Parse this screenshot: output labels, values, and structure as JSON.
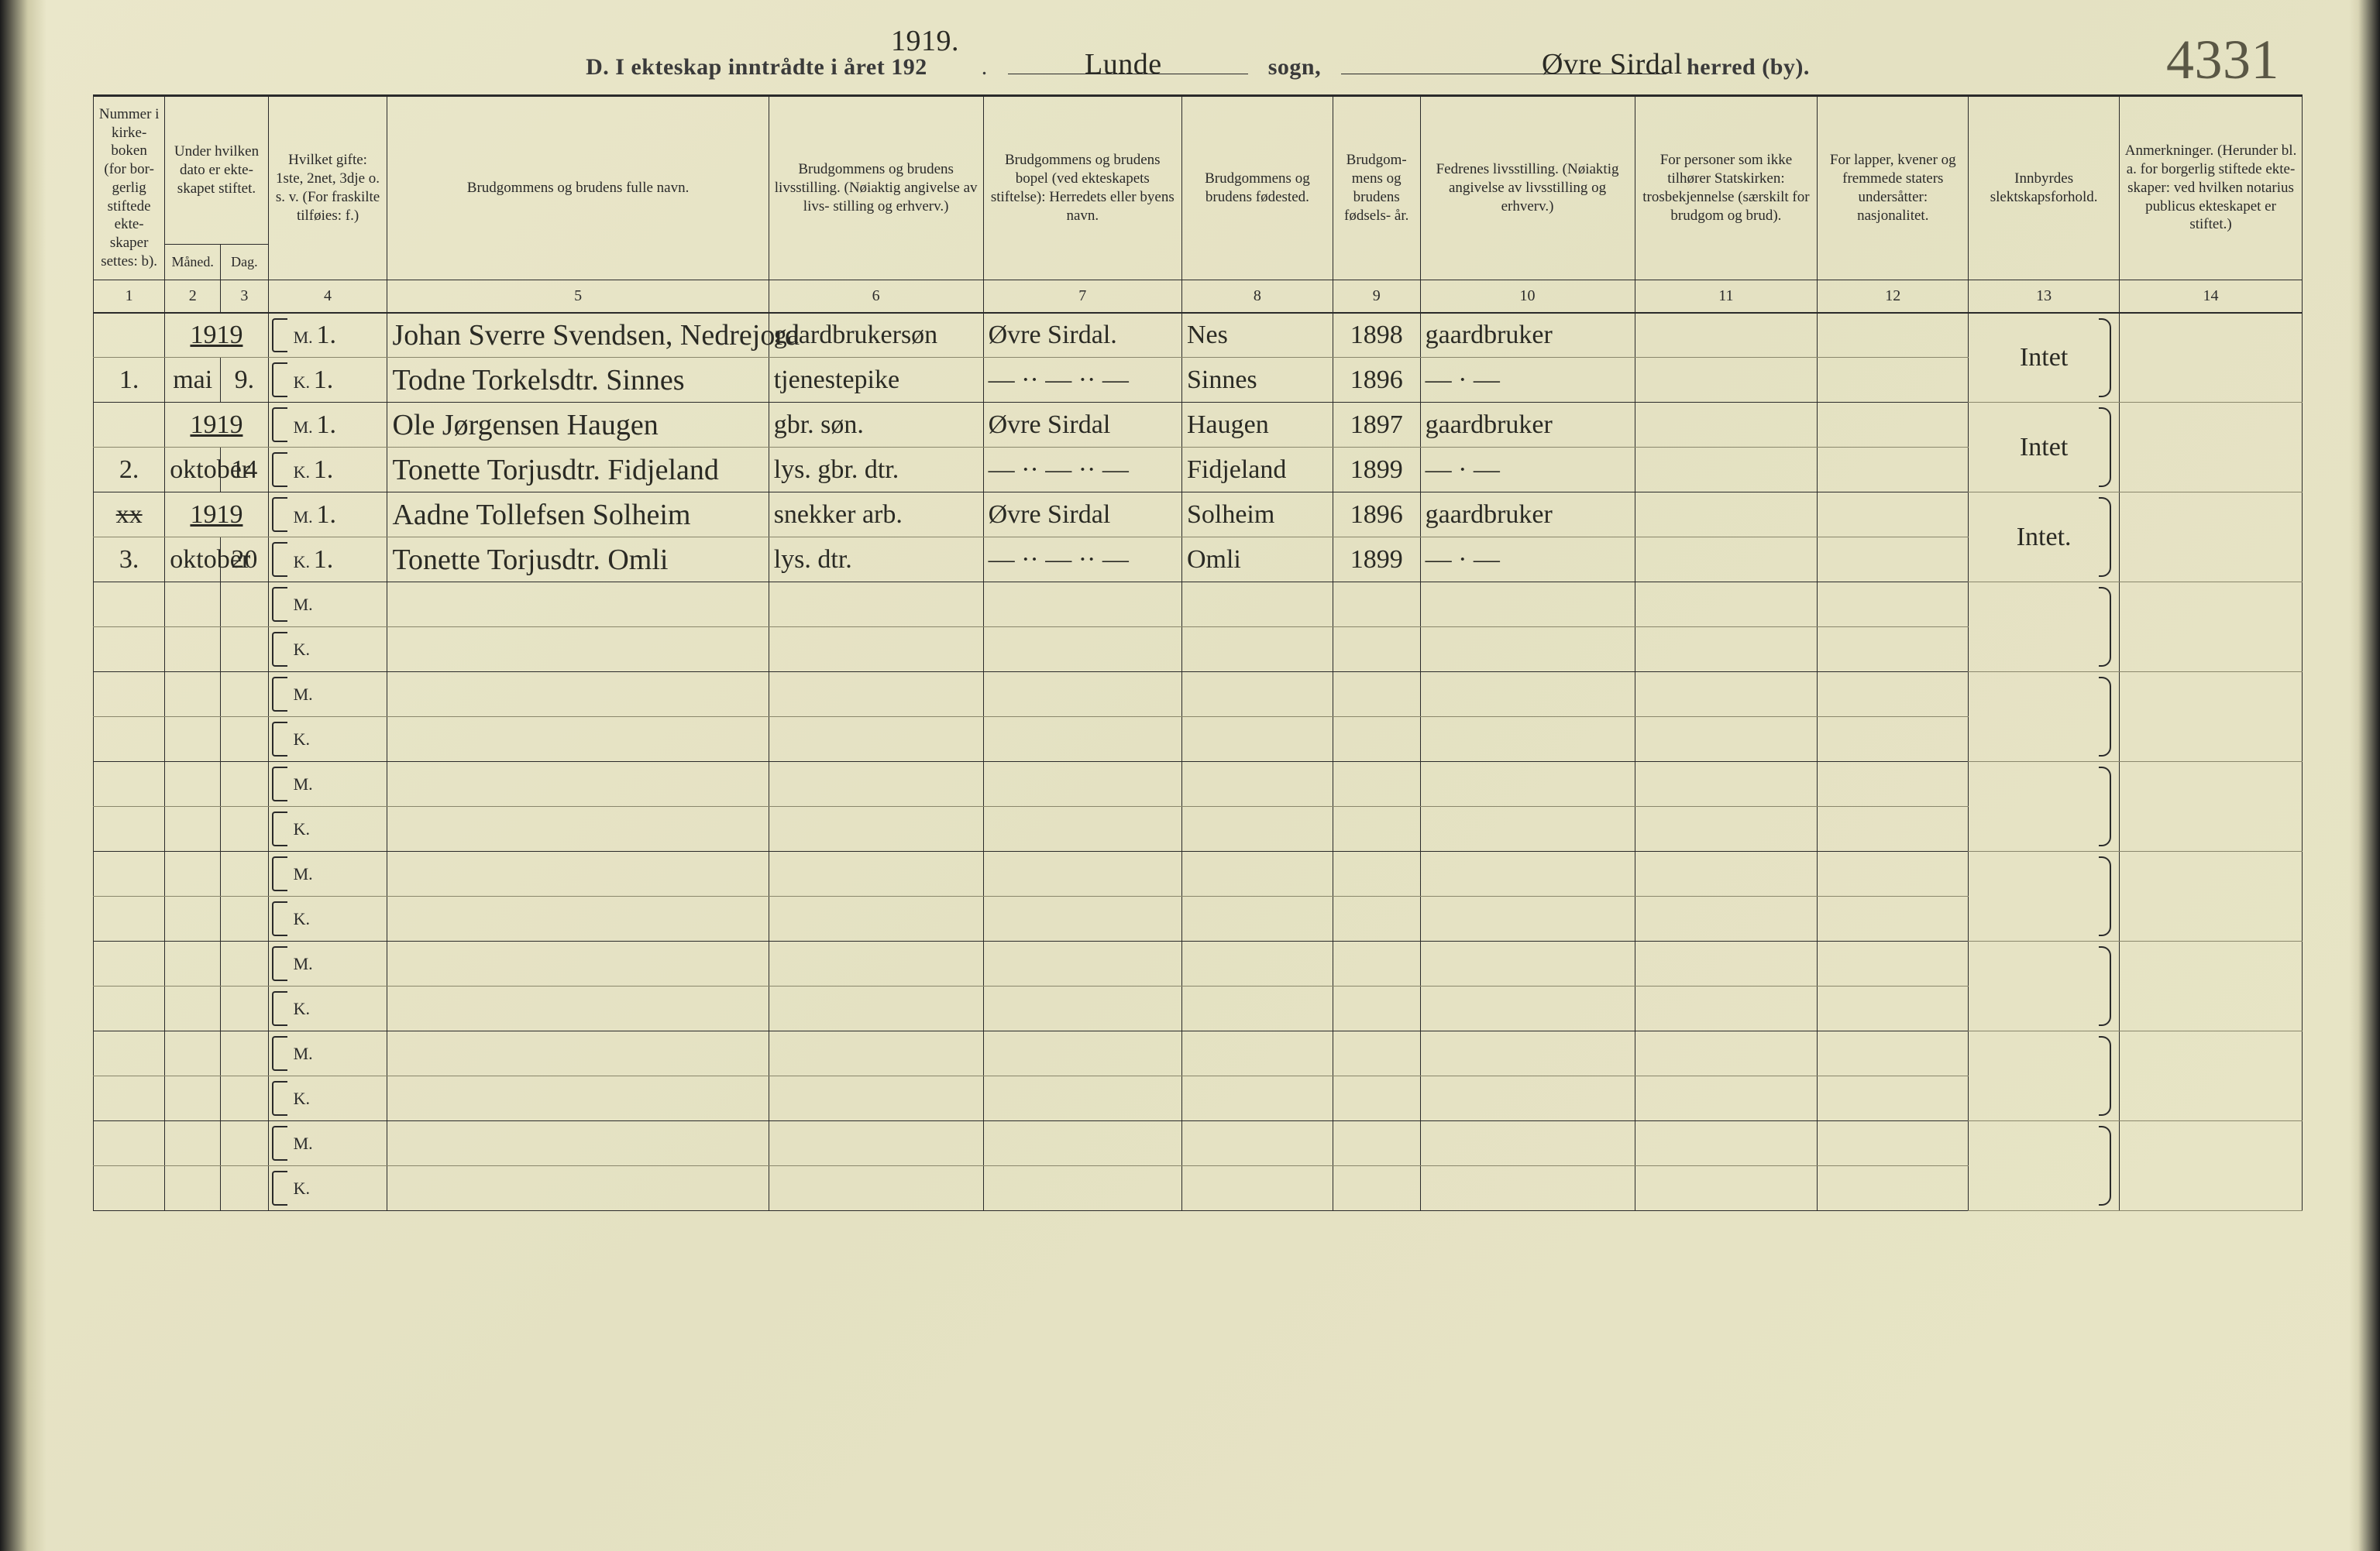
{
  "header": {
    "section_letter": "D.",
    "title_prefix": "I ekteskap inntrådte i året 192",
    "year_handwritten_above": "1919.",
    "sogn_label": "sogn,",
    "sogn_value": "Lunde",
    "herred_label": "herred (by).",
    "herred_value": "Øvre Sirdal",
    "page_number_hand": "4331"
  },
  "columns": {
    "1": "Nummer i kirke- boken (for bor- gerlig stiftede ekte- skaper settes: b).",
    "2_group": "Under hvilken dato er ekte- skapet stiftet.",
    "2": "Måned.",
    "3": "Dag.",
    "4": "Hvilket gifte: 1ste, 2net, 3dje o. s. v. (For fraskilte tilføies: f.)",
    "5": "Brudgommens og brudens fulle navn.",
    "6": "Brudgommens og brudens livsstilling. (Nøiaktig angivelse av livs- stilling og erhverv.)",
    "7": "Brudgommens og brudens bopel (ved ekteskapets stiftelse): Herredets eller byens navn.",
    "8": "Brudgommens og brudens fødested.",
    "9": "Brudgom- mens og brudens fødsels- år.",
    "10": "Fedrenes livsstilling. (Nøiaktig angivelse av livsstilling og erhverv.)",
    "11": "For personer som ikke tilhører Statskirken: trosbekjennelse (særskilt for brudgom og brud).",
    "12": "For lapper, kvener og fremmede staters undersåtter: nasjonalitet.",
    "13": "Innbyrdes slektskapsforhold.",
    "14": "Anmerkninger. (Herunder bl. a. for borgerlig stiftede ekte- skaper: ved hvilken notarius publicus ekteskapet er stiftet.)"
  },
  "colnums": [
    "1",
    "2",
    "3",
    "4",
    "5",
    "6",
    "7",
    "8",
    "9",
    "10",
    "11",
    "12",
    "13",
    "14"
  ],
  "mk_labels": {
    "m": "M.",
    "k": "K."
  },
  "entries": [
    {
      "no": "1.",
      "year": "1919",
      "month": "mai",
      "day": "9.",
      "m": {
        "gifte": "1.",
        "name": "Johan Sverre Svendsen, Nedrejord",
        "occ": "gaardbrukersøn",
        "bopel": "Øvre Sirdal.",
        "fodested": "Nes",
        "year": "1898",
        "father_occ": "gaardbruker"
      },
      "k": {
        "gifte": "1.",
        "name": "Todne Torkelsdtr. Sinnes",
        "occ": "tjenestepike",
        "bopel": "— ·· — ·· —",
        "fodested": "Sinnes",
        "year": "1896",
        "father_occ": "— · —"
      },
      "slekt": "Intet"
    },
    {
      "no": "2.",
      "year": "1919",
      "month": "oktober",
      "day": "14",
      "m": {
        "gifte": "1.",
        "name": "Ole Jørgensen Haugen",
        "occ": "gbr. søn.",
        "bopel": "Øvre Sirdal",
        "fodested": "Haugen",
        "year": "1897",
        "father_occ": "gaardbruker"
      },
      "k": {
        "gifte": "1.",
        "name": "Tonette Torjusdtr. Fidjeland",
        "occ": "lys. gbr. dtr.",
        "bopel": "— ·· — ·· —",
        "fodested": "Fidjeland",
        "year": "1899",
        "father_occ": "— · —"
      },
      "slekt": "Intet"
    },
    {
      "no": "3.",
      "year": "1919",
      "month": "oktober",
      "day": "20",
      "no_strike_prefix": "xx",
      "m": {
        "gifte": "1.",
        "name": "Aadne Tollefsen Solheim",
        "occ": "snekker arb.",
        "bopel": "Øvre Sirdal",
        "fodested": "Solheim",
        "year": "1896",
        "father_occ": "gaardbruker"
      },
      "k": {
        "gifte": "1.",
        "name": "Tonette Torjusdtr. Omli",
        "occ": "lys. dtr.",
        "bopel": "— ·· — ·· —",
        "fodested": "Omli",
        "year": "1899",
        "father_occ": "— · —"
      },
      "slekt": "Intet."
    }
  ],
  "empty_pairs": 7,
  "style": {
    "page_bg": "#e8e5c8",
    "rule_color": "#2a2a2a",
    "hand_color": "#2a2a24",
    "header_fontsize_pt": 30,
    "colhead_fontsize_pt": 19,
    "hand_fontsize_pt": 38,
    "hand_sm_fontsize_pt": 34
  }
}
